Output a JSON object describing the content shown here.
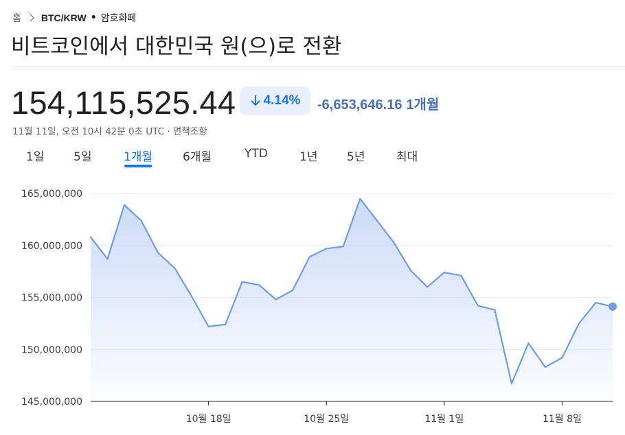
{
  "breadcrumb": {
    "home": "홈",
    "pair": "BTC/KRW",
    "separator": "•",
    "category": "암호화폐"
  },
  "title": "비트코인에서 대한민국 원(으)로 전환",
  "quote": {
    "price": "154,115,525.44",
    "change_percent": "4.14%",
    "change_direction": "down",
    "change_amount": "-6,653,646.16",
    "change_period": "1개월",
    "timestamp": "11월 11일, 오전 10시 42분 0초 UTC · 면책조항"
  },
  "tabs": [
    {
      "label": "1일",
      "active": false
    },
    {
      "label": "5일",
      "active": false
    },
    {
      "label": "1개월",
      "active": true
    },
    {
      "label": "6개월",
      "active": false
    },
    {
      "label": "YTD",
      "active": false
    },
    {
      "label": "1년",
      "active": false
    },
    {
      "label": "5년",
      "active": false
    },
    {
      "label": "최대",
      "active": false
    }
  ],
  "colors": {
    "accent": "#1a73e8",
    "line": "#6f9be8",
    "negative_text": "#4a6fb5",
    "fill_top": "#c9d9f7"
  },
  "chart_data": {
    "type": "area",
    "ylim": [
      145000000,
      167000000
    ],
    "yticks": [
      145000000,
      150000000,
      155000000,
      160000000,
      165000000
    ],
    "ytick_labels": [
      "145,000,000",
      "150,000,000",
      "155,000,000",
      "160,000,000",
      "165,000,000"
    ],
    "xticks": [
      {
        "label": "10월 18일",
        "index": 7
      },
      {
        "label": "10월 25일",
        "index": 14
      },
      {
        "label": "11월 1일",
        "index": 21
      },
      {
        "label": "11월 8일",
        "index": 28
      }
    ],
    "grid": "horizontal",
    "series": [
      {
        "values": [
          160800000,
          158700000,
          163900000,
          162400000,
          159300000,
          157800000,
          155100000,
          152200000,
          152400000,
          156500000,
          156200000,
          154800000,
          155700000,
          158900000,
          159700000,
          159900000,
          164500000,
          162400000,
          160300000,
          157600000,
          156000000,
          157400000,
          157100000,
          154200000,
          153800000,
          146700000,
          150600000,
          148300000,
          149200000,
          152500000,
          154500000,
          154115525.44
        ]
      }
    ]
  }
}
